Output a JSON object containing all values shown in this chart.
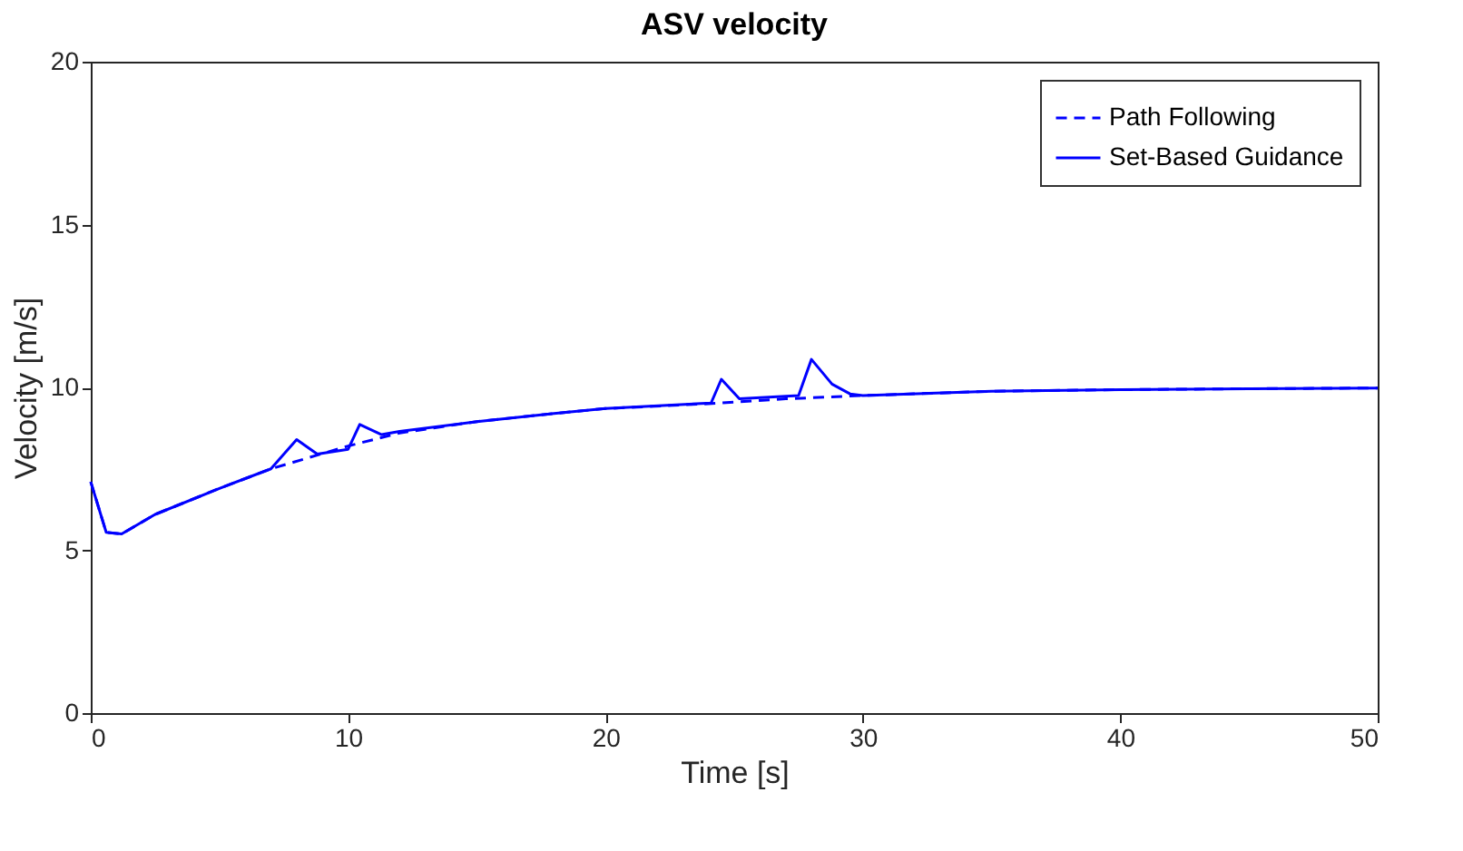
{
  "chart_data": {
    "type": "line",
    "title": "ASV velocity",
    "xlabel": "Time [s]",
    "ylabel": "Velocity [m/s]",
    "xlim": [
      0,
      50
    ],
    "ylim": [
      0,
      20
    ],
    "xticks": [
      0,
      10,
      20,
      30,
      40,
      50
    ],
    "yticks": [
      0,
      5,
      10,
      15,
      20
    ],
    "grid": false,
    "legend": "top right",
    "marker": "none",
    "series": [
      {
        "name": "Path Following",
        "color": "#0000ff",
        "line_style": "dashed",
        "x": [
          0,
          0.6,
          1.2,
          2.5,
          5,
          7,
          10,
          12,
          15,
          18,
          20,
          24,
          27,
          30,
          35,
          40,
          45,
          50
        ],
        "values": [
          7.1,
          5.55,
          5.5,
          6.1,
          6.9,
          7.5,
          8.2,
          8.6,
          8.95,
          9.2,
          9.35,
          9.5,
          9.65,
          9.75,
          9.88,
          9.93,
          9.96,
          9.98
        ]
      },
      {
        "name": "Set-Based Guidance",
        "color": "#0000ff",
        "line_style": "solid",
        "x": [
          0,
          0.6,
          1.2,
          2.5,
          5,
          7,
          8,
          8.8,
          10,
          10.45,
          11.3,
          12,
          15,
          18,
          20,
          24.1,
          24.5,
          25.2,
          27.5,
          28,
          28.8,
          29.5,
          30,
          35,
          40,
          45,
          50
        ],
        "values": [
          7.1,
          5.55,
          5.5,
          6.1,
          6.9,
          7.5,
          8.4,
          7.95,
          8.1,
          8.86,
          8.55,
          8.65,
          8.95,
          9.2,
          9.35,
          9.52,
          10.25,
          9.65,
          9.75,
          10.86,
          10.1,
          9.8,
          9.75,
          9.88,
          9.93,
          9.96,
          9.98
        ]
      }
    ]
  }
}
